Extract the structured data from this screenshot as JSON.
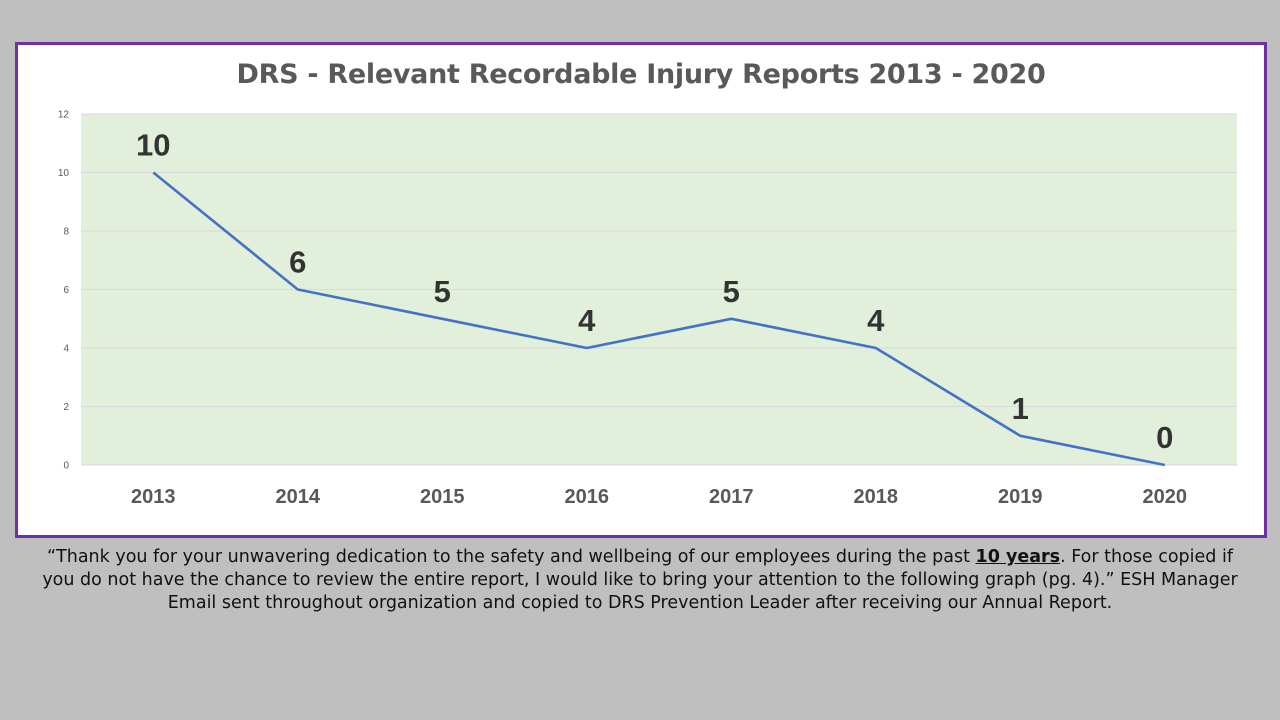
{
  "chart_data": {
    "type": "line",
    "title": "DRS - Relevant Recordable Injury Reports 2013 - 2020",
    "categories": [
      "2013",
      "2014",
      "2015",
      "2016",
      "2017",
      "2018",
      "2019",
      "2020"
    ],
    "series": [
      {
        "values": [
          10,
          6,
          5,
          4,
          5,
          4,
          1,
          0
        ]
      }
    ],
    "data_labels": [
      "10",
      "6",
      "5",
      "4",
      "5",
      "4",
      "1",
      "0"
    ],
    "ylim": [
      0,
      12
    ],
    "yticks": [
      "0",
      "2",
      "4",
      "6",
      "8",
      "10",
      "12"
    ],
    "xlabel": "",
    "ylabel": "",
    "grid": true,
    "legend": "none",
    "colors": {
      "line": "#4472c4",
      "plot_area": "#e2efda",
      "gridline": "#d9d9d9",
      "data_label": "#333333",
      "tick_label": "#595959",
      "frame_border": "#7030a0"
    }
  },
  "caption": {
    "part1": "“Thank you for your unwavering dedication to the safety and wellbeing of our employees during the past ",
    "emphasis": "10 years",
    "part2": ". For those copied if you do not have the chance to review the entire report, I would like to bring your attention to the following graph (pg. 4).”   ESH Manager Email sent throughout organization and copied to DRS Prevention Leader after receiving our Annual Report."
  }
}
